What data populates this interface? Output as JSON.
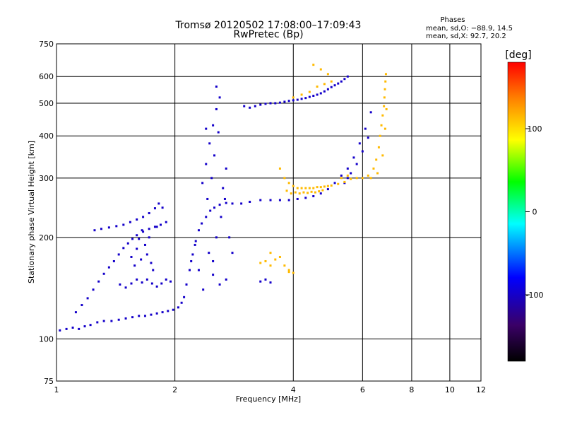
{
  "chart_data": {
    "type": "scatter",
    "title": "Tromsø 20120502 17:08:00–17:09:43",
    "subtitle": "RwPretec (Bp)",
    "xlabel": "Frequency [MHz]",
    "ylabel": "Stationary phase Virtual Height [km]",
    "x_scale": "log",
    "y_scale": "log",
    "xlim": [
      1,
      12
    ],
    "ylim": [
      75,
      750
    ],
    "x_ticks": [
      1,
      2,
      4,
      6,
      8,
      10,
      12
    ],
    "y_ticks": [
      75,
      100,
      200,
      300,
      400,
      500,
      600,
      750
    ],
    "grid": true,
    "stats": {
      "heading": "Phases",
      "line1": "mean, sd,O: −88.9, 14.5",
      "line2": "mean, sd,X: 92.7, 20.2"
    },
    "colorbar": {
      "label": "[deg]",
      "range": [
        -180,
        180
      ],
      "ticks": [
        100,
        0,
        -100
      ],
      "colors": [
        "#000000",
        "#3a0066",
        "#0000ff",
        "#00ffff",
        "#00ff00",
        "#ffff00",
        "#ff8000",
        "#ff0000"
      ]
    },
    "series": [
      {
        "name": "O",
        "color_value": -95,
        "points": [
          [
            1.02,
            106
          ],
          [
            1.06,
            107
          ],
          [
            1.1,
            108
          ],
          [
            1.14,
            107
          ],
          [
            1.18,
            109
          ],
          [
            1.22,
            110
          ],
          [
            1.27,
            112
          ],
          [
            1.32,
            113
          ],
          [
            1.38,
            113
          ],
          [
            1.44,
            114
          ],
          [
            1.5,
            115
          ],
          [
            1.56,
            116
          ],
          [
            1.62,
            117
          ],
          [
            1.68,
            117
          ],
          [
            1.74,
            118
          ],
          [
            1.8,
            119
          ],
          [
            1.86,
            120
          ],
          [
            1.92,
            121
          ],
          [
            1.98,
            122
          ],
          [
            2.04,
            124
          ],
          [
            2.08,
            128
          ],
          [
            2.11,
            133
          ],
          [
            2.14,
            145
          ],
          [
            2.18,
            160
          ],
          [
            2.22,
            178
          ],
          [
            2.26,
            195
          ],
          [
            2.3,
            210
          ],
          [
            2.34,
            220
          ],
          [
            2.4,
            230
          ],
          [
            2.46,
            240
          ],
          [
            2.52,
            245
          ],
          [
            2.6,
            250
          ],
          [
            2.7,
            253
          ],
          [
            2.8,
            252
          ],
          [
            2.95,
            252
          ],
          [
            3.1,
            255
          ],
          [
            3.3,
            258
          ],
          [
            3.5,
            258
          ],
          [
            3.7,
            258
          ],
          [
            3.9,
            258
          ],
          [
            4.1,
            260
          ],
          [
            4.3,
            262
          ],
          [
            4.5,
            265
          ],
          [
            4.7,
            270
          ],
          [
            4.9,
            278
          ],
          [
            5.1,
            290
          ],
          [
            5.3,
            305
          ],
          [
            5.5,
            320
          ],
          [
            5.7,
            345
          ],
          [
            5.9,
            380
          ],
          [
            6.1,
            420
          ],
          [
            6.3,
            470
          ],
          [
            1.12,
            120
          ],
          [
            1.16,
            126
          ],
          [
            1.2,
            132
          ],
          [
            1.24,
            140
          ],
          [
            1.28,
            148
          ],
          [
            1.32,
            156
          ],
          [
            1.36,
            163
          ],
          [
            1.4,
            170
          ],
          [
            1.44,
            178
          ],
          [
            1.48,
            186
          ],
          [
            1.52,
            192
          ],
          [
            1.56,
            198
          ],
          [
            1.6,
            203
          ],
          [
            1.66,
            208
          ],
          [
            1.72,
            212
          ],
          [
            1.78,
            215
          ],
          [
            1.84,
            218
          ],
          [
            1.9,
            222
          ],
          [
            1.45,
            145
          ],
          [
            1.5,
            142
          ],
          [
            1.55,
            146
          ],
          [
            1.6,
            150
          ],
          [
            1.65,
            147
          ],
          [
            1.7,
            150
          ],
          [
            1.75,
            146
          ],
          [
            1.8,
            143
          ],
          [
            1.85,
            146
          ],
          [
            1.9,
            150
          ],
          [
            1.95,
            148
          ],
          [
            1.25,
            210
          ],
          [
            1.3,
            212
          ],
          [
            1.36,
            214
          ],
          [
            1.42,
            216
          ],
          [
            1.48,
            218
          ],
          [
            1.54,
            222
          ],
          [
            1.6,
            226
          ],
          [
            1.66,
            230
          ],
          [
            1.72,
            236
          ],
          [
            1.78,
            244
          ],
          [
            1.82,
            252
          ],
          [
            1.86,
            245
          ],
          [
            1.55,
            175
          ],
          [
            1.6,
            185
          ],
          [
            1.62,
            198
          ],
          [
            1.65,
            210
          ],
          [
            1.68,
            190
          ],
          [
            1.7,
            178
          ],
          [
            1.74,
            168
          ],
          [
            1.76,
            160
          ],
          [
            1.58,
            165
          ],
          [
            1.64,
            172
          ],
          [
            1.72,
            200
          ],
          [
            1.8,
            215
          ],
          [
            2.35,
            290
          ],
          [
            2.4,
            330
          ],
          [
            2.45,
            380
          ],
          [
            2.5,
            430
          ],
          [
            2.55,
            480
          ],
          [
            2.6,
            520
          ],
          [
            2.42,
            260
          ],
          [
            2.48,
            300
          ],
          [
            2.52,
            350
          ],
          [
            2.58,
            410
          ],
          [
            2.44,
            180
          ],
          [
            2.5,
            170
          ],
          [
            2.55,
            200
          ],
          [
            2.62,
            230
          ],
          [
            2.68,
            260
          ],
          [
            2.75,
            200
          ],
          [
            2.8,
            180
          ],
          [
            2.5,
            155
          ],
          [
            2.6,
            145
          ],
          [
            2.7,
            150
          ],
          [
            2.36,
            140
          ],
          [
            2.3,
            160
          ],
          [
            2.2,
            170
          ],
          [
            2.25,
            190
          ],
          [
            2.65,
            280
          ],
          [
            2.7,
            320
          ],
          [
            2.4,
            420
          ],
          [
            2.55,
            560
          ],
          [
            3.0,
            490
          ],
          [
            3.1,
            485
          ],
          [
            3.2,
            490
          ],
          [
            3.3,
            495
          ],
          [
            3.4,
            498
          ],
          [
            3.5,
            500
          ],
          [
            3.6,
            500
          ],
          [
            3.7,
            502
          ],
          [
            3.8,
            505
          ],
          [
            3.9,
            508
          ],
          [
            4.0,
            510
          ],
          [
            4.1,
            512
          ],
          [
            4.2,
            515
          ],
          [
            4.3,
            518
          ],
          [
            4.4,
            522
          ],
          [
            4.5,
            526
          ],
          [
            4.6,
            530
          ],
          [
            4.7,
            535
          ],
          [
            4.8,
            542
          ],
          [
            4.9,
            550
          ],
          [
            5.0,
            558
          ],
          [
            5.1,
            565
          ],
          [
            5.2,
            572
          ],
          [
            5.3,
            580
          ],
          [
            5.4,
            590
          ],
          [
            5.5,
            600
          ],
          [
            3.3,
            148
          ],
          [
            3.4,
            150
          ],
          [
            3.5,
            147
          ],
          [
            5.4,
            290
          ],
          [
            5.5,
            300
          ],
          [
            5.6,
            310
          ],
          [
            5.8,
            330
          ],
          [
            6.0,
            360
          ],
          [
            6.2,
            395
          ]
        ]
      },
      {
        "name": "X",
        "color_value": 105,
        "points": [
          [
            3.7,
            320
          ],
          [
            3.8,
            300
          ],
          [
            3.9,
            290
          ],
          [
            4.0,
            284
          ],
          [
            4.1,
            280
          ],
          [
            4.2,
            280
          ],
          [
            4.3,
            280
          ],
          [
            4.4,
            280
          ],
          [
            4.5,
            280
          ],
          [
            4.6,
            282
          ],
          [
            4.7,
            282
          ],
          [
            4.8,
            283
          ],
          [
            4.9,
            284
          ],
          [
            5.0,
            285
          ],
          [
            5.2,
            288
          ],
          [
            5.4,
            292
          ],
          [
            5.6,
            298
          ],
          [
            5.8,
            300
          ],
          [
            6.0,
            300
          ],
          [
            6.2,
            305
          ],
          [
            6.4,
            320
          ],
          [
            6.5,
            340
          ],
          [
            6.6,
            370
          ],
          [
            6.65,
            400
          ],
          [
            6.7,
            430
          ],
          [
            6.75,
            460
          ],
          [
            6.8,
            490
          ],
          [
            6.82,
            520
          ],
          [
            6.84,
            550
          ],
          [
            6.86,
            580
          ],
          [
            6.88,
            610
          ],
          [
            3.85,
            275
          ],
          [
            3.95,
            270
          ],
          [
            4.05,
            272
          ],
          [
            4.15,
            270
          ],
          [
            4.25,
            272
          ],
          [
            4.35,
            271
          ],
          [
            4.45,
            273
          ],
          [
            4.55,
            272
          ],
          [
            4.65,
            274
          ],
          [
            4.75,
            276
          ],
          [
            5.3,
            300
          ],
          [
            5.5,
            305
          ],
          [
            6.3,
            300
          ],
          [
            6.55,
            310
          ],
          [
            6.75,
            350
          ],
          [
            6.85,
            420
          ],
          [
            6.9,
            480
          ],
          [
            4.0,
            520
          ],
          [
            4.2,
            530
          ],
          [
            4.4,
            540
          ],
          [
            4.6,
            560
          ],
          [
            4.8,
            570
          ],
          [
            5.0,
            580
          ],
          [
            4.5,
            650
          ],
          [
            4.7,
            630
          ],
          [
            4.9,
            610
          ],
          [
            3.4,
            170
          ],
          [
            3.5,
            165
          ],
          [
            3.6,
            172
          ],
          [
            3.7,
            175
          ],
          [
            3.8,
            165
          ],
          [
            3.9,
            160
          ],
          [
            4.0,
            157
          ],
          [
            3.3,
            168
          ],
          [
            3.5,
            180
          ],
          [
            3.9,
            158
          ]
        ]
      }
    ]
  }
}
